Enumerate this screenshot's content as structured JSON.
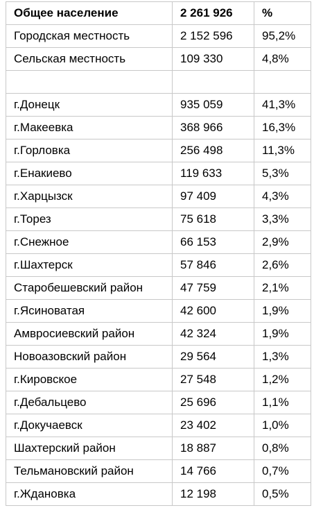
{
  "header": {
    "label": "Общее население",
    "value": "2 261 926",
    "percent": "%"
  },
  "summary": [
    {
      "label": "Городская местность",
      "value": "2 152 596",
      "percent": "95,2%"
    },
    {
      "label": "Сельская местность",
      "value": "109 330",
      "percent": "4,8%"
    }
  ],
  "rows": [
    {
      "label": "г.Донецк",
      "value": "935 059",
      "percent": "41,3%"
    },
    {
      "label": "г.Макеевка",
      "value": "368 966",
      "percent": "16,3%"
    },
    {
      "label": "г.Горловка",
      "value": "256 498",
      "percent": "11,3%"
    },
    {
      "label": "г.Енакиево",
      "value": "119 633",
      "percent": "5,3%"
    },
    {
      "label": "г.Харцызск",
      "value": "97 409",
      "percent": "4,3%"
    },
    {
      "label": "г.Торез",
      "value": "75 618",
      "percent": "3,3%"
    },
    {
      "label": "г.Снежное",
      "value": "66 153",
      "percent": "2,9%"
    },
    {
      "label": "г.Шахтерск",
      "value": "57 846",
      "percent": "2,6%"
    },
    {
      "label": "Старобешевский район",
      "value": "47 759",
      "percent": "2,1%"
    },
    {
      "label": "г.Ясиноватая",
      "value": "42 600",
      "percent": "1,9%"
    },
    {
      "label": "Амвросиевский район",
      "value": "42 324",
      "percent": "1,9%"
    },
    {
      "label": "Новоазовский район",
      "value": "29 564",
      "percent": "1,3%"
    },
    {
      "label": "г.Кировское",
      "value": "27 548",
      "percent": "1,2%"
    },
    {
      "label": "г.Дебальцево",
      "value": "25 696",
      "percent": "1,1%"
    },
    {
      "label": "г.Докучаевск",
      "value": "23 402",
      "percent": "1,0%"
    },
    {
      "label": "Шахтерский район",
      "value": "18 887",
      "percent": "0,8%"
    },
    {
      "label": "Тельмановский район",
      "value": "14 766",
      "percent": "0,7%"
    },
    {
      "label": "г.Ждановка",
      "value": "12 198",
      "percent": "0,5%"
    }
  ]
}
